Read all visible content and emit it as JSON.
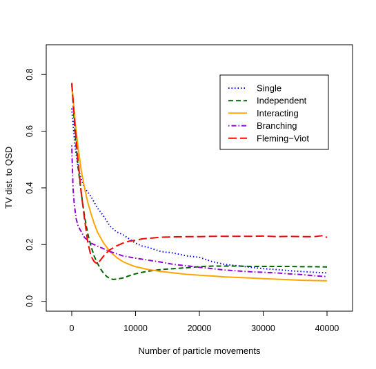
{
  "chart_data": {
    "type": "line",
    "title": "",
    "xlabel": "Number of particle movements",
    "ylabel": "TV dist. to QSD",
    "xlim": [
      -4000,
      44000
    ],
    "ylim": [
      -0.035,
      0.905
    ],
    "xticks": [
      0,
      10000,
      20000,
      30000,
      40000
    ],
    "xtick_labels": [
      "0",
      "10000",
      "20000",
      "30000",
      "40000"
    ],
    "yticks": [
      0.0,
      0.2,
      0.4,
      0.6,
      0.8
    ],
    "ytick_labels": [
      "0.0",
      "0.2",
      "0.4",
      "0.6",
      "0.8"
    ],
    "grid": false,
    "legend_position": "top-right",
    "series": [
      {
        "name": "Single",
        "color": "#0000ff",
        "line_style": "dotted",
        "x": [
          0,
          500,
          1000,
          1500,
          2000,
          3000,
          4000,
          5000,
          6000,
          7000,
          8000,
          9000,
          10000,
          11000,
          12000,
          14000,
          16000,
          18000,
          20000,
          22000,
          24000,
          26000,
          28000,
          30000,
          32000,
          34000,
          36000,
          38000,
          40000
        ],
        "y": [
          0.68,
          0.55,
          0.47,
          0.43,
          0.4,
          0.37,
          0.33,
          0.3,
          0.265,
          0.245,
          0.235,
          0.22,
          0.205,
          0.195,
          0.19,
          0.175,
          0.17,
          0.16,
          0.155,
          0.14,
          0.13,
          0.125,
          0.12,
          0.115,
          0.112,
          0.108,
          0.105,
          0.102,
          0.1
        ]
      },
      {
        "name": "Independent",
        "color": "#006400",
        "line_style": "dashed",
        "x": [
          0,
          500,
          1000,
          1500,
          2000,
          2500,
          3000,
          3500,
          4000,
          4500,
          5000,
          5500,
          6000,
          6500,
          7000,
          8000,
          9000,
          10000,
          11000,
          12000,
          14000,
          16000,
          18000,
          20000,
          22000,
          24000,
          26000,
          28000,
          30000,
          32000,
          34000,
          36000,
          38000,
          40000
        ],
        "y": [
          0.77,
          0.6,
          0.47,
          0.38,
          0.3,
          0.24,
          0.195,
          0.16,
          0.135,
          0.115,
          0.098,
          0.087,
          0.08,
          0.077,
          0.078,
          0.082,
          0.09,
          0.097,
          0.102,
          0.106,
          0.112,
          0.115,
          0.118,
          0.122,
          0.124,
          0.124,
          0.124,
          0.123,
          0.123,
          0.123,
          0.123,
          0.122,
          0.122,
          0.121
        ]
      },
      {
        "name": "Interacting",
        "color": "#ffa500",
        "line_style": "solid",
        "x": [
          0,
          500,
          1000,
          1500,
          2000,
          2500,
          3000,
          3500,
          4000,
          5000,
          6000,
          7000,
          8000,
          9000,
          10000,
          12000,
          14000,
          16000,
          18000,
          20000,
          22000,
          24000,
          26000,
          28000,
          30000,
          32000,
          34000,
          36000,
          38000,
          40000
        ],
        "y": [
          0.77,
          0.64,
          0.54,
          0.46,
          0.4,
          0.35,
          0.31,
          0.275,
          0.245,
          0.205,
          0.175,
          0.155,
          0.14,
          0.13,
          0.122,
          0.112,
          0.105,
          0.1,
          0.095,
          0.092,
          0.089,
          0.086,
          0.084,
          0.082,
          0.08,
          0.078,
          0.076,
          0.074,
          0.073,
          0.072
        ]
      },
      {
        "name": "Branching",
        "color": "#9400d3",
        "line_style": "dotdash",
        "x": [
          0,
          200,
          400,
          700,
          1000,
          1500,
          2000,
          3000,
          4000,
          5000,
          6000,
          7000,
          8000,
          10000,
          12000,
          14000,
          16000,
          18000,
          20000,
          22000,
          24000,
          26000,
          28000,
          30000,
          32000,
          34000,
          36000,
          38000,
          40000
        ],
        "y": [
          0.55,
          0.4,
          0.34,
          0.29,
          0.265,
          0.245,
          0.225,
          0.205,
          0.195,
          0.185,
          0.175,
          0.168,
          0.16,
          0.152,
          0.145,
          0.138,
          0.13,
          0.125,
          0.12,
          0.115,
          0.11,
          0.107,
          0.104,
          0.102,
          0.1,
          0.097,
          0.094,
          0.09,
          0.087
        ]
      },
      {
        "name": "Fleming−Viot",
        "color": "#ff0000",
        "line_style": "longdash",
        "x": [
          0,
          500,
          1000,
          1500,
          2000,
          2500,
          3000,
          3500,
          4000,
          4500,
          5000,
          5500,
          6000,
          7000,
          8000,
          9000,
          10000,
          11000,
          12000,
          14000,
          16000,
          18000,
          20000,
          22000,
          24000,
          26000,
          28000,
          30000,
          32000,
          34000,
          36000,
          38000,
          39500,
          40000
        ],
        "y": [
          0.77,
          0.62,
          0.49,
          0.38,
          0.29,
          0.21,
          0.16,
          0.14,
          0.132,
          0.145,
          0.16,
          0.172,
          0.182,
          0.195,
          0.205,
          0.212,
          0.215,
          0.22,
          0.222,
          0.226,
          0.227,
          0.228,
          0.228,
          0.229,
          0.229,
          0.229,
          0.229,
          0.23,
          0.228,
          0.229,
          0.228,
          0.228,
          0.232,
          0.225
        ]
      }
    ]
  }
}
